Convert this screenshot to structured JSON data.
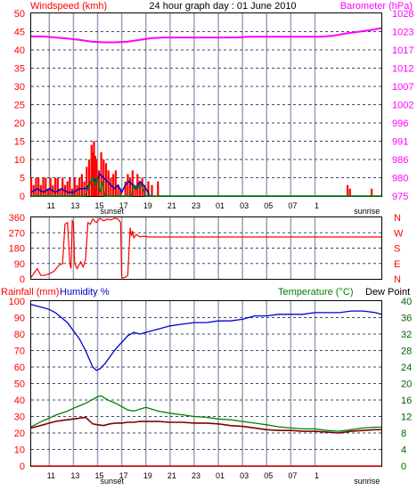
{
  "title": "24 hour graph day : 01 June 2010",
  "colors": {
    "grid": "#9aa0b4",
    "red": "#ff0000",
    "magenta": "#ff00ff",
    "blue": "#0000cc",
    "green": "#008000",
    "darkred": "#800000",
    "black": "#000000",
    "darkgreen": "#006400"
  },
  "x_ticks": [
    "11",
    "13",
    "15",
    "17",
    "19",
    "21",
    "23",
    "01",
    "03",
    "05",
    "07",
    "1"
  ],
  "sunset_label": "sunset",
  "sunrise_label": "sunrise",
  "chart_data": [
    {
      "type": "bar",
      "left_label": "Windspeed (kmh)",
      "right_label": "Barometer (hPa)",
      "left_ticks": [
        "50",
        "45",
        "40",
        "35",
        "30",
        "25",
        "20",
        "15",
        "10",
        "5",
        "0"
      ],
      "right_ticks": [
        "1028",
        "1023",
        "1017",
        "1012",
        "1007",
        "1002",
        "996",
        "991",
        "986",
        "980",
        "975"
      ],
      "ylim_left": [
        0,
        50
      ],
      "ylim_right": [
        975,
        1028
      ],
      "series": [
        {
          "name": "wind gust",
          "kind": "bars",
          "color": "red",
          "x": [
            9.5,
            9.7,
            9.9,
            10.1,
            10.3,
            10.5,
            10.7,
            10.9,
            11.1,
            11.3,
            11.5,
            11.7,
            11.9,
            12.1,
            12.3,
            12.5,
            12.7,
            12.9,
            13.1,
            13.3,
            13.5,
            13.7,
            13.9,
            14.1,
            14.3,
            14.5,
            14.6,
            14.7,
            14.8,
            14.9,
            15.1,
            15.3,
            15.5,
            15.7,
            15.9,
            16.1,
            16.3,
            16.5,
            16.7,
            16.9,
            17.3,
            17.5,
            17.7,
            17.9,
            18.1,
            18.3,
            18.5,
            18.7,
            18.9,
            19.2,
            19.5,
            20.0,
            35.7,
            35.9,
            37.7
          ],
          "values": [
            5,
            3,
            5,
            5,
            3,
            5,
            5,
            2,
            5,
            3,
            5,
            5,
            2,
            5,
            3,
            4,
            5,
            2,
            5,
            3,
            5,
            6,
            4,
            8,
            10,
            14,
            12,
            15,
            11,
            10,
            7,
            12,
            10,
            9,
            7,
            5,
            6,
            7,
            3,
            2,
            4,
            6,
            5,
            7,
            3,
            6,
            4,
            5,
            3,
            4,
            3,
            4,
            3,
            2,
            2
          ]
        },
        {
          "name": "wind speed",
          "kind": "line",
          "color": "blue",
          "x": [
            9.5,
            10.0,
            10.5,
            11.0,
            11.5,
            12.0,
            12.5,
            13.0,
            13.5,
            14.0,
            14.3,
            14.6,
            14.9,
            15.2,
            15.5,
            15.8,
            16.1,
            16.4,
            16.7,
            17.0,
            17.3,
            17.6,
            17.9,
            18.2,
            18.5,
            18.8,
            19.0,
            19.2,
            19.3
          ],
          "values": [
            1,
            2,
            1,
            2,
            1,
            2,
            1,
            1,
            2,
            2,
            3,
            5,
            4,
            6,
            5,
            4,
            3,
            2,
            3,
            1,
            3,
            4,
            3,
            2,
            4,
            3,
            2,
            1,
            0
          ]
        },
        {
          "name": "wind direction marks",
          "kind": "line",
          "color": "green",
          "x": [
            9.5,
            14.0,
            14.2,
            14.6,
            14.8,
            15.0,
            15.2,
            15.4,
            15.6,
            17.8,
            18.0,
            18.3,
            18.6,
            19.0,
            38.5
          ],
          "values": [
            0,
            0,
            2,
            5,
            3,
            5,
            1,
            4,
            0,
            0,
            3,
            2,
            3,
            0,
            0
          ]
        },
        {
          "name": "barometer",
          "kind": "line",
          "axis": "right",
          "color": "magenta",
          "x": [
            9.5,
            10.5,
            11.5,
            12.5,
            13.5,
            14.5,
            15.5,
            16.5,
            17.5,
            18.5,
            19.5,
            20.5,
            21.5,
            22.5,
            23.5,
            24.5,
            25.5,
            26.5,
            27.5,
            28.5,
            29.5,
            30.5,
            31.5,
            32.5,
            33.5,
            34.5,
            35.5,
            36.5,
            37.5,
            38.5
          ],
          "values": [
            1021.3,
            1021.3,
            1021.0,
            1020.7,
            1020.3,
            1019.8,
            1019.6,
            1019.6,
            1019.8,
            1020.3,
            1020.8,
            1021.0,
            1021.0,
            1021.0,
            1021.0,
            1021.0,
            1021.0,
            1021.0,
            1021.2,
            1021.2,
            1021.2,
            1021.2,
            1021.2,
            1021.2,
            1021.2,
            1021.5,
            1022.1,
            1022.6,
            1023.1,
            1023.7
          ]
        }
      ]
    },
    {
      "type": "line",
      "left_ticks": [
        "360",
        "270",
        "180",
        "90",
        "0"
      ],
      "right_ticks": [
        "N",
        "W",
        "S",
        "E",
        "N"
      ],
      "ylim": [
        0,
        360
      ],
      "series": [
        {
          "name": "wind direction",
          "color": "red",
          "x": [
            9.5,
            10.0,
            10.3,
            10.6,
            11.0,
            11.4,
            11.8,
            12.1,
            12.3,
            12.5,
            12.7,
            12.8,
            12.9,
            13.0,
            13.1,
            13.3,
            13.6,
            13.8,
            14.0,
            14.2,
            14.4,
            14.6,
            14.9,
            15.2,
            15.5,
            15.8,
            16.1,
            16.4,
            16.7,
            16.9,
            17.0,
            17.1,
            17.3,
            17.5,
            17.7,
            17.8,
            17.9,
            18.0,
            18.2,
            18.5,
            18.8,
            19.2,
            38.5
          ],
          "values": [
            10,
            60,
            20,
            20,
            30,
            45,
            80,
            90,
            320,
            330,
            90,
            60,
            340,
            330,
            90,
            60,
            100,
            70,
            110,
            330,
            320,
            350,
            330,
            355,
            340,
            350,
            345,
            355,
            350,
            330,
            10,
            5,
            10,
            20,
            300,
            250,
            280,
            240,
            260,
            245,
            250,
            245,
            245
          ]
        }
      ]
    },
    {
      "type": "line",
      "left_label_a": "Rainfall (mm)",
      "left_label_b": "Humidity %",
      "right_label_a": "Temperature (°C)",
      "right_label_b": "Dew Point",
      "left_ticks": [
        "100",
        "90",
        "80",
        "70",
        "60",
        "50",
        "40",
        "30",
        "20",
        "10",
        "0"
      ],
      "right_ticks": [
        "40",
        "36",
        "32",
        "28",
        "24",
        "20",
        "16",
        "12",
        "8",
        "4",
        "0"
      ],
      "ylim_left": [
        0,
        100
      ],
      "ylim_right": [
        0,
        40
      ],
      "series": [
        {
          "name": "humidity",
          "color": "blue",
          "axis": "left",
          "x": [
            9.5,
            10.0,
            10.5,
            11.0,
            11.5,
            12.0,
            12.5,
            13.0,
            13.5,
            14.0,
            14.3,
            14.6,
            14.9,
            15.2,
            15.6,
            16.0,
            16.5,
            17.0,
            17.5,
            18.0,
            18.5,
            19.0,
            19.5,
            20.0,
            21.0,
            22.0,
            23.0,
            24.0,
            25.0,
            26.0,
            27.0,
            28.0,
            29.0,
            30.0,
            31.0,
            32.0,
            33.0,
            34.0,
            35.0,
            36.0,
            37.0,
            38.0,
            38.5
          ],
          "values": [
            98,
            97,
            96,
            95,
            93,
            90,
            87,
            82,
            77,
            70,
            65,
            60,
            58,
            59,
            62,
            66,
            71,
            75,
            79,
            81,
            80,
            81,
            82,
            83,
            85,
            86,
            87,
            87,
            88,
            88,
            89,
            91,
            91,
            92,
            92,
            92,
            93,
            93,
            93,
            94,
            94,
            93,
            92
          ]
        },
        {
          "name": "temperature",
          "color": "green",
          "axis": "right",
          "x": [
            9.5,
            10.0,
            10.5,
            11.0,
            11.5,
            12.0,
            12.5,
            13.0,
            13.5,
            14.0,
            14.5,
            15.0,
            15.3,
            15.6,
            16.0,
            16.5,
            17.0,
            17.5,
            18.0,
            18.5,
            19.0,
            19.5,
            20.0,
            21.0,
            22.0,
            23.0,
            24.0,
            25.0,
            26.0,
            27.0,
            28.0,
            29.0,
            30.0,
            31.0,
            32.0,
            33.0,
            34.0,
            35.0,
            36.0,
            37.0,
            38.0,
            38.5
          ],
          "values": [
            9.5,
            10.3,
            11,
            11.6,
            12.3,
            12.8,
            13.3,
            14,
            14.6,
            15.2,
            16,
            16.8,
            17,
            16.4,
            15.8,
            15.2,
            14.4,
            13.6,
            13.3,
            13.8,
            14.2,
            13.8,
            13.3,
            12.8,
            12.4,
            12,
            11.8,
            11.4,
            11.2,
            10.8,
            10.4,
            10,
            9.5,
            9.2,
            9,
            9,
            8.6,
            8.4,
            8.8,
            9.2,
            9.4,
            9.4
          ]
        },
        {
          "name": "dew point",
          "color": "darkred",
          "axis": "right",
          "x": [
            9.5,
            10.0,
            10.5,
            11.0,
            11.5,
            12.0,
            12.5,
            13.0,
            13.5,
            14.0,
            14.3,
            14.6,
            15.0,
            15.5,
            16.0,
            16.5,
            17.0,
            17.5,
            18.0,
            18.5,
            19.0,
            20.0,
            21.0,
            22.0,
            23.0,
            24.0,
            25.0,
            26.0,
            27.0,
            28.0,
            29.0,
            30.0,
            31.0,
            32.0,
            33.0,
            34.0,
            35.0,
            36.0,
            37.0,
            38.0,
            38.5
          ],
          "values": [
            9.2,
            9.6,
            10,
            10.4,
            10.8,
            11,
            11.2,
            11.4,
            11.6,
            11.8,
            11.0,
            10.2,
            10.0,
            9.8,
            10.2,
            10.4,
            10.4,
            10.6,
            10.6,
            10.8,
            10.8,
            10.8,
            10.6,
            10.6,
            10.4,
            10.4,
            10.2,
            9.8,
            9.6,
            9.2,
            8.8,
            8.6,
            8.6,
            8.4,
            8.4,
            8.2,
            8.0,
            8.4,
            8.6,
            8.8,
            8.8
          ]
        },
        {
          "name": "rainfall",
          "color": "red",
          "axis": "left",
          "x": [
            9.5,
            38.5
          ],
          "values": [
            0,
            0
          ]
        }
      ]
    }
  ]
}
